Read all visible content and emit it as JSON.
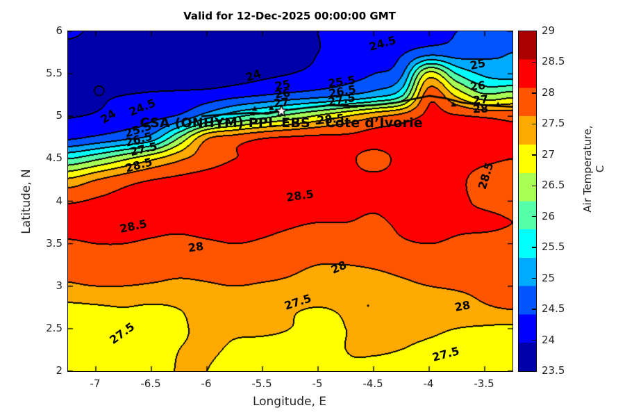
{
  "title": "Valid for 12-Dec-2025 00:00:00 GMT",
  "axes": {
    "xlabel": "Longitude, E",
    "ylabel": "Latitude, N",
    "xlim": [
      -7.25,
      -3.25
    ],
    "ylim": [
      2,
      6
    ],
    "xticks": [
      -7,
      -6.5,
      -6,
      -5.5,
      -5,
      -4.5,
      -4,
      -3.5
    ],
    "yticks": [
      6,
      5.5,
      5,
      4.5,
      4,
      3.5,
      3,
      2.5,
      2
    ]
  },
  "colorbar": {
    "label": "Air Temperature, C",
    "tick_values": [
      29,
      28.5,
      28,
      27.5,
      27,
      26.5,
      26,
      25.5,
      25,
      24.5,
      24,
      23.5
    ],
    "band_colors_top_to_bottom": [
      "#AA0000",
      "#FF0000",
      "#FF5500",
      "#FFAA00",
      "#FFFF00",
      "#AAFF55",
      "#55FFAA",
      "#00FFFF",
      "#00AAFF",
      "#0055FF",
      "#0000FF",
      "#0000AA"
    ]
  },
  "annotation": {
    "text": "CSA (ONHYM) PPL EBS - Cote d’Ivorie",
    "lon": -5.33,
    "lat": 4.92,
    "star": {
      "lon": -5.33,
      "lat": 5.06,
      "fill": "#ffffff",
      "edge": "#000000"
    }
  },
  "chart_data": {
    "type": "heatmap",
    "style": "filled_contour",
    "units": "degrees C",
    "title": "Valid for 12-Dec-2025 00:00:00 GMT",
    "xlabel": "Longitude, E",
    "ylabel": "Latitude, N",
    "contour_interval": 0.5,
    "level_min": 23.5,
    "level_max": 29,
    "lon": [
      -7.25,
      -7.0,
      -6.75,
      -6.5,
      -6.25,
      -6.0,
      -5.75,
      -5.5,
      -5.25,
      -5.0,
      -4.75,
      -4.5,
      -4.25,
      -4.0,
      -3.75,
      -3.5,
      -3.25
    ],
    "lat": [
      6.0,
      5.75,
      5.5,
      5.25,
      5.0,
      4.75,
      4.5,
      4.25,
      4.0,
      3.75,
      3.5,
      3.25,
      3.0,
      2.75,
      2.5,
      2.25,
      2.0
    ],
    "values": [
      [
        24.1,
        23.9,
        23.8,
        23.75,
        23.7,
        23.65,
        23.7,
        23.75,
        23.85,
        24.0,
        24.1,
        24.2,
        24.3,
        24.35,
        24.5,
        24.7,
        24.85
      ],
      [
        23.8,
        23.75,
        23.7,
        23.68,
        23.65,
        23.6,
        23.65,
        23.72,
        23.85,
        24.0,
        24.15,
        24.3,
        24.45,
        24.8,
        24.75,
        24.9,
        25.0
      ],
      [
        23.85,
        23.8,
        23.78,
        23.75,
        23.72,
        23.7,
        23.8,
        23.9,
        24.0,
        24.15,
        24.3,
        24.5,
        24.9,
        27.2,
        26.0,
        25.4,
        25.2
      ],
      [
        23.9,
        23.95,
        24.0,
        24.05,
        24.1,
        24.2,
        24.35,
        24.5,
        24.65,
        24.8,
        25.0,
        25.3,
        25.9,
        28.3,
        27.4,
        26.6,
        26.8
      ],
      [
        23.98,
        24.05,
        24.2,
        24.35,
        24.6,
        25.3,
        25.9,
        26.3,
        26.7,
        27.1,
        27.5,
        27.9,
        28.2,
        28.6,
        28.55,
        28.45,
        28.35
      ],
      [
        24.4,
        24.6,
        24.85,
        25.2,
        26.5,
        27.9,
        28.2,
        28.45,
        28.55,
        28.6,
        28.6,
        28.65,
        28.65,
        28.7,
        28.65,
        28.6,
        28.55
      ],
      [
        26.0,
        26.4,
        26.9,
        27.4,
        27.9,
        28.3,
        28.5,
        28.6,
        28.65,
        28.65,
        28.6,
        28.35,
        28.6,
        28.65,
        28.6,
        28.55,
        28.5
      ],
      [
        27.6,
        28.0,
        28.3,
        28.5,
        28.6,
        28.65,
        28.65,
        28.65,
        28.65,
        28.6,
        28.6,
        28.6,
        28.6,
        28.6,
        28.55,
        28.4,
        28.3
      ],
      [
        28.45,
        28.55,
        28.6,
        28.65,
        28.7,
        28.7,
        28.7,
        28.65,
        28.65,
        28.6,
        28.6,
        28.55,
        28.6,
        28.6,
        28.55,
        28.45,
        28.4
      ],
      [
        28.6,
        28.6,
        28.6,
        28.6,
        28.6,
        28.65,
        28.65,
        28.6,
        28.55,
        28.5,
        28.5,
        28.45,
        28.55,
        28.6,
        28.55,
        28.55,
        28.5
      ],
      [
        28.45,
        28.5,
        28.5,
        28.45,
        28.4,
        28.45,
        28.5,
        28.45,
        28.35,
        28.2,
        28.25,
        28.3,
        28.45,
        28.5,
        28.45,
        28.4,
        28.4
      ],
      [
        28.1,
        28.2,
        28.25,
        28.2,
        28.15,
        28.2,
        28.25,
        28.2,
        28.1,
        28.0,
        28.0,
        28.05,
        28.15,
        28.25,
        28.25,
        28.2,
        28.25
      ],
      [
        27.95,
        28.0,
        28.0,
        27.95,
        27.9,
        27.95,
        28.0,
        27.95,
        27.9,
        27.8,
        27.75,
        27.8,
        27.9,
        28.0,
        28.05,
        28.1,
        28.2
      ],
      [
        27.4,
        27.45,
        27.5,
        27.45,
        27.52,
        27.7,
        27.65,
        27.6,
        27.55,
        27.5,
        27.55,
        27.6,
        27.65,
        27.7,
        27.8,
        27.95,
        28.05
      ],
      [
        27.3,
        27.3,
        27.35,
        27.4,
        27.45,
        27.6,
        27.55,
        27.55,
        27.5,
        27.4,
        27.5,
        27.55,
        27.55,
        27.55,
        27.5,
        27.45,
        27.4
      ],
      [
        27.25,
        27.28,
        27.32,
        27.38,
        27.5,
        27.55,
        27.45,
        27.4,
        27.38,
        27.35,
        27.5,
        27.52,
        27.5,
        27.45,
        27.4,
        27.35,
        27.3
      ],
      [
        27.2,
        27.25,
        27.3,
        27.35,
        27.52,
        27.5,
        27.35,
        27.3,
        27.28,
        27.3,
        27.45,
        27.45,
        27.4,
        27.35,
        27.3,
        27.25,
        27.2
      ]
    ],
    "band_colors_low_to_high": [
      "#0000AA",
      "#0000FF",
      "#0055FF",
      "#00AAFF",
      "#00FFFF",
      "#55FFAA",
      "#AAFF55",
      "#FFFF00",
      "#FFAA00",
      "#FF5500",
      "#FF0000",
      "#AA0000"
    ],
    "contour_line_color": "#000000"
  },
  "contour_labels": [
    {
      "t": "24",
      "lon": -6.89,
      "lat": 4.99,
      "rot": -33
    },
    {
      "t": "24.5",
      "lon": -6.58,
      "lat": 5.1,
      "rot": -22
    },
    {
      "t": "25.5",
      "lon": -6.62,
      "lat": 4.84,
      "rot": -18
    },
    {
      "t": "26.5",
      "lon": -6.61,
      "lat": 4.72,
      "rot": -15
    },
    {
      "t": "27.5",
      "lon": -6.57,
      "lat": 4.61,
      "rot": -13
    },
    {
      "t": "28.5",
      "lon": -6.61,
      "lat": 4.42,
      "rot": -15
    },
    {
      "t": "24",
      "lon": -5.58,
      "lat": 5.48,
      "rot": -18
    },
    {
      "t": "24.5",
      "lon": -4.42,
      "lat": 5.85,
      "rot": -16
    },
    {
      "t": "25",
      "lon": -5.32,
      "lat": 5.36,
      "rot": -10
    },
    {
      "t": "26",
      "lon": -5.32,
      "lat": 5.26,
      "rot": -8
    },
    {
      "t": "27",
      "lon": -5.33,
      "lat": 5.16,
      "rot": -8
    },
    {
      "t": "25.5",
      "lon": -4.79,
      "lat": 5.4,
      "rot": -8
    },
    {
      "t": "26.5",
      "lon": -4.78,
      "lat": 5.29,
      "rot": -10
    },
    {
      "t": "27.5",
      "lon": -4.79,
      "lat": 5.19,
      "rot": -10
    },
    {
      "t": "28.5",
      "lon": -4.89,
      "lat": 4.96,
      "rot": -5
    },
    {
      "t": "25",
      "lon": -3.56,
      "lat": 5.61,
      "rot": -12
    },
    {
      "t": "26",
      "lon": -3.56,
      "lat": 5.35,
      "rot": -6
    },
    {
      "t": "27",
      "lon": -3.54,
      "lat": 5.19,
      "rot": -5
    },
    {
      "t": "28",
      "lon": -3.54,
      "lat": 5.08,
      "rot": -3
    },
    {
      "t": "28.5",
      "lon": -3.49,
      "lat": 4.3,
      "rot": -73
    },
    {
      "t": "28.5",
      "lon": -5.16,
      "lat": 4.06,
      "rot": -8
    },
    {
      "t": "28.5",
      "lon": -6.66,
      "lat": 3.7,
      "rot": -12
    },
    {
      "t": "28",
      "lon": -6.1,
      "lat": 3.46,
      "rot": -8
    },
    {
      "t": "28",
      "lon": -4.81,
      "lat": 3.22,
      "rot": -24
    },
    {
      "t": "27.5",
      "lon": -5.18,
      "lat": 2.81,
      "rot": -18
    },
    {
      "t": "27.5",
      "lon": -6.76,
      "lat": 2.44,
      "rot": -36
    },
    {
      "t": "28",
      "lon": -3.7,
      "lat": 2.76,
      "rot": -10
    },
    {
      "t": "27.5",
      "lon": -3.85,
      "lat": 2.2,
      "rot": -15
    }
  ],
  "coastline": {
    "color": "#000000",
    "points": [
      [
        -6.05,
        5.0
      ],
      [
        -5.85,
        5.02
      ],
      [
        -5.6,
        5.04
      ],
      [
        -5.45,
        5.03
      ],
      [
        -5.3,
        5.07
      ],
      [
        -5.1,
        5.1
      ],
      [
        -4.9,
        5.13
      ],
      [
        -4.7,
        5.12
      ],
      [
        -4.5,
        5.13
      ],
      [
        -4.3,
        5.16
      ],
      [
        -4.15,
        5.2
      ],
      [
        -4.0,
        5.24
      ],
      [
        -3.85,
        5.21
      ],
      [
        -3.7,
        5.16
      ],
      [
        -3.5,
        5.13
      ],
      [
        -3.25,
        5.11
      ]
    ],
    "tick_marks": [
      [
        -5.57,
        5.08
      ],
      [
        -5.42,
        5.09
      ],
      [
        -3.78,
        5.13
      ],
      [
        -3.38,
        5.13
      ]
    ]
  },
  "decorations": {
    "ring": {
      "lon": -6.97,
      "lat": 5.3,
      "r": 7
    },
    "dot": {
      "lon": -4.55,
      "lat": 2.77
    }
  }
}
